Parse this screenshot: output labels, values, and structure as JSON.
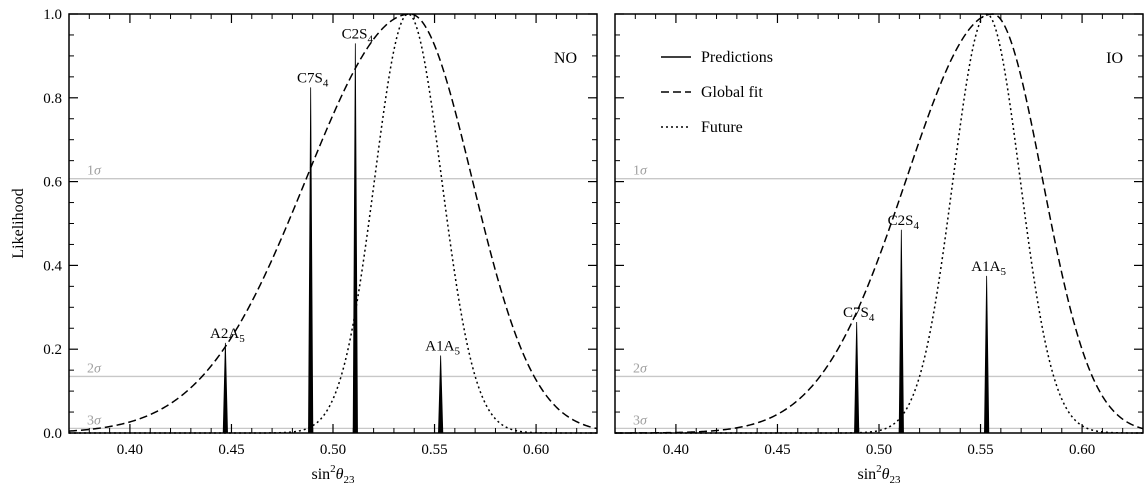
{
  "chart_data": [
    {
      "type": "line",
      "panel_tag": "NO",
      "xlabel": "sin²θ₂₃",
      "xlabel_parts": {
        "pre": "sin",
        "sup": "2",
        "mid": "θ",
        "sub": "23"
      },
      "ylabel": "Likelihood",
      "xlim": [
        0.37,
        0.63
      ],
      "ylim": [
        0.0,
        1.0
      ],
      "xticks": [
        0.4,
        0.45,
        0.5,
        0.55,
        0.6
      ],
      "xtick_labels": [
        "0.40",
        "0.45",
        "0.50",
        "0.55",
        "0.60"
      ],
      "yticks": [
        0.0,
        0.2,
        0.4,
        0.6,
        0.8,
        1.0
      ],
      "ytick_labels": [
        "0.0",
        "0.2",
        "0.4",
        "0.6",
        "0.8",
        "1.0"
      ],
      "sigma_lines": [
        {
          "label": "1σ",
          "num": "1",
          "sym": "σ",
          "y": 0.607
        },
        {
          "label": "2σ",
          "num": "2",
          "sym": "σ",
          "y": 0.135
        },
        {
          "label": "3σ",
          "num": "3",
          "sym": "σ",
          "y": 0.011
        }
      ],
      "series": [
        {
          "name": "Global fit",
          "style": "dashed",
          "peak_x": 0.538,
          "sigma_left": 0.0512,
          "sigma_right": 0.0305
        },
        {
          "name": "Future",
          "style": "dotted",
          "peak_x": 0.537,
          "sigma": 0.0165
        }
      ],
      "predictions": [
        {
          "label_main": "A2A",
          "label_sub": "5",
          "x": 0.447,
          "y": 0.215
        },
        {
          "label_main": "C7S",
          "label_sub": "4",
          "x": 0.489,
          "y": 0.825
        },
        {
          "label_main": "C2S",
          "label_sub": "4",
          "x": 0.511,
          "y": 0.93
        },
        {
          "label_main": "A1A",
          "label_sub": "5",
          "x": 0.553,
          "y": 0.185
        }
      ]
    },
    {
      "type": "line",
      "panel_tag": "IO",
      "xlabel": "sin²θ₂₃",
      "xlabel_parts": {
        "pre": "sin",
        "sup": "2",
        "mid": "θ",
        "sub": "23"
      },
      "ylabel": "",
      "xlim": [
        0.37,
        0.63
      ],
      "ylim": [
        0.0,
        1.0
      ],
      "xticks": [
        0.4,
        0.45,
        0.5,
        0.55,
        0.6
      ],
      "xtick_labels": [
        "0.40",
        "0.45",
        "0.50",
        "0.55",
        "0.60"
      ],
      "yticks": [
        0.0,
        0.2,
        0.4,
        0.6,
        0.8,
        1.0
      ],
      "ytick_labels": [],
      "sigma_lines": [
        {
          "label": "1σ",
          "num": "1",
          "sym": "σ",
          "y": 0.607
        },
        {
          "label": "2σ",
          "num": "2",
          "sym": "σ",
          "y": 0.135
        },
        {
          "label": "3σ",
          "num": "3",
          "sym": "σ",
          "y": 0.011
        }
      ],
      "series": [
        {
          "name": "Global fit",
          "style": "dashed",
          "peak_x": 0.556,
          "sigma_left": 0.0425,
          "sigma_right": 0.0245
        },
        {
          "name": "Future",
          "style": "dotted",
          "peak_x": 0.553,
          "sigma": 0.0165
        }
      ],
      "predictions": [
        {
          "label_main": "C7S",
          "label_sub": "4",
          "x": 0.489,
          "y": 0.265
        },
        {
          "label_main": "C2S",
          "label_sub": "4",
          "x": 0.511,
          "y": 0.485
        },
        {
          "label_main": "A1A",
          "label_sub": "5",
          "x": 0.553,
          "y": 0.375
        }
      ],
      "legend": {
        "placement": "top-left",
        "entries": [
          {
            "label": "Predictions",
            "style": "solid"
          },
          {
            "label": "Global fit",
            "style": "dashed"
          },
          {
            "label": "Future",
            "style": "dotted"
          }
        ]
      }
    }
  ]
}
